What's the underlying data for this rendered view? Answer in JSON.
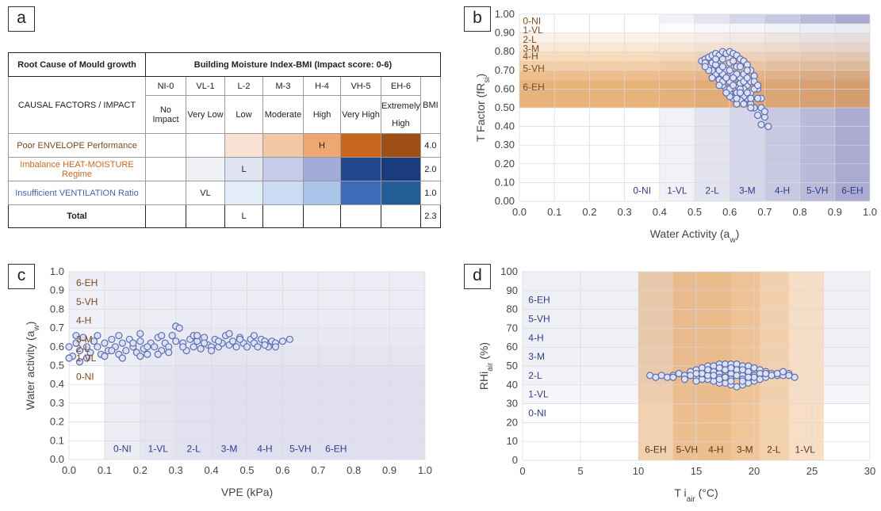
{
  "panel_labels": {
    "a": "a",
    "b": "b",
    "c": "c",
    "d": "d"
  },
  "table": {
    "root_cause_header": "Root Cause of  Mould growth",
    "bmi_header": "Building Moisture Index-BMI (Impact score: 0-6)",
    "causal_header": "CAUSAL FACTORS / IMPACT",
    "bmi_col": "BMI",
    "levels": [
      {
        "code": "NI-0",
        "name": "No Impact"
      },
      {
        "code": "VL-1",
        "name": "Very Low"
      },
      {
        "code": "L-2",
        "name": "Low"
      },
      {
        "code": "M-3",
        "name": "Moderate"
      },
      {
        "code": "H-4",
        "name": "High"
      },
      {
        "code": "VH-5",
        "name": "Very High"
      },
      {
        "code": "EH-6",
        "name": "Extremely High"
      }
    ],
    "rows": [
      {
        "label": "Poor ENVELOPE Performance",
        "label_color": "#7a4a1e",
        "marks": [
          "",
          "",
          "",
          "",
          "H",
          "",
          ""
        ],
        "colors": [
          "#ffffff",
          "#ffffff",
          "#f9e2d4",
          "#f2c8a6",
          "#eea771",
          "#c9651d",
          "#9e4f15"
        ],
        "bmi": "4.0"
      },
      {
        "label": "Imbalance HEAT-MOISTURE Regime",
        "label_color": "#c56a1f",
        "marks": [
          "",
          "",
          "L",
          "",
          "",
          "",
          ""
        ],
        "colors": [
          "#ffffff",
          "#eff1f7",
          "#dfe3f2",
          "#c6cce8",
          "#a3abd9",
          "#23468f",
          "#1a3b7e"
        ],
        "bmi": "2.0"
      },
      {
        "label": "Insufficient VENTILATION Ratio",
        "label_color": "#4a63b0",
        "marks": [
          "",
          "VL",
          "",
          "",
          "",
          "",
          ""
        ],
        "colors": [
          "#ffffff",
          "#ffffff",
          "#e3edf9",
          "#c9dcf3",
          "#a9c5ea",
          "#3e6bb8",
          "#255d96"
        ],
        "bmi": "1.0"
      }
    ],
    "total": {
      "label": "Total",
      "marks": [
        "",
        "",
        "L",
        "",
        "",
        "",
        ""
      ],
      "bmi": "2.3"
    }
  },
  "chart_data": [
    {
      "id": "b",
      "type": "scatter",
      "xlabel": "Water Activity (a_w)",
      "ylabel": "T Factor (fR_si)",
      "xlim": [
        0,
        1
      ],
      "ylim": [
        0,
        1
      ],
      "x_ticks": [
        "0.0",
        "0.1",
        "0.2",
        "0.3",
        "0.4",
        "0.5",
        "0.6",
        "0.7",
        "0.8",
        "0.9",
        "1.0"
      ],
      "y_ticks": [
        "0.00",
        "0.10",
        "0.20",
        "0.30",
        "0.40",
        "0.50",
        "0.60",
        "0.70",
        "0.80",
        "0.90",
        "1.00"
      ],
      "h_zone_labels": [
        "0-NI",
        "1-VL",
        "2-L",
        "3-M",
        "4-H",
        "5-VH",
        "6-EH"
      ],
      "v_zone_labels": [
        "0-NI",
        "1-VL",
        "2-L",
        "3-M",
        "4-H",
        "5-VH",
        "6-EH"
      ],
      "points": [
        [
          0.52,
          0.75
        ],
        [
          0.53,
          0.76
        ],
        [
          0.54,
          0.77
        ],
        [
          0.55,
          0.78
        ],
        [
          0.56,
          0.79
        ],
        [
          0.57,
          0.78
        ],
        [
          0.58,
          0.8
        ],
        [
          0.59,
          0.79
        ],
        [
          0.6,
          0.8
        ],
        [
          0.61,
          0.79
        ],
        [
          0.62,
          0.78
        ],
        [
          0.63,
          0.76
        ],
        [
          0.64,
          0.75
        ],
        [
          0.65,
          0.73
        ],
        [
          0.66,
          0.7
        ],
        [
          0.67,
          0.67
        ],
        [
          0.68,
          0.6
        ],
        [
          0.69,
          0.55
        ],
        [
          0.7,
          0.45
        ],
        [
          0.71,
          0.4
        ],
        [
          0.69,
          0.41
        ],
        [
          0.68,
          0.46
        ],
        [
          0.67,
          0.5
        ],
        [
          0.66,
          0.52
        ],
        [
          0.65,
          0.55
        ],
        [
          0.64,
          0.56
        ],
        [
          0.63,
          0.54
        ],
        [
          0.62,
          0.52
        ],
        [
          0.61,
          0.55
        ],
        [
          0.6,
          0.58
        ],
        [
          0.59,
          0.6
        ],
        [
          0.58,
          0.62
        ],
        [
          0.57,
          0.65
        ],
        [
          0.56,
          0.68
        ],
        [
          0.55,
          0.7
        ],
        [
          0.54,
          0.72
        ],
        [
          0.53,
          0.74
        ],
        [
          0.55,
          0.74
        ],
        [
          0.57,
          0.72
        ],
        [
          0.59,
          0.7
        ],
        [
          0.61,
          0.68
        ],
        [
          0.63,
          0.66
        ],
        [
          0.65,
          0.62
        ],
        [
          0.6,
          0.74
        ],
        [
          0.62,
          0.72
        ],
        [
          0.58,
          0.76
        ],
        [
          0.64,
          0.6
        ],
        [
          0.66,
          0.58
        ],
        [
          0.6,
          0.64
        ],
        [
          0.62,
          0.62
        ],
        [
          0.58,
          0.68
        ],
        [
          0.56,
          0.73
        ],
        [
          0.64,
          0.68
        ],
        [
          0.66,
          0.64
        ],
        [
          0.62,
          0.58
        ],
        [
          0.6,
          0.6
        ],
        [
          0.58,
          0.64
        ],
        [
          0.61,
          0.75
        ],
        [
          0.63,
          0.72
        ],
        [
          0.56,
          0.76
        ],
        [
          0.59,
          0.66
        ],
        [
          0.57,
          0.7
        ],
        [
          0.65,
          0.7
        ],
        [
          0.63,
          0.63
        ],
        [
          0.61,
          0.62
        ],
        [
          0.67,
          0.6
        ],
        [
          0.68,
          0.55
        ],
        [
          0.66,
          0.5
        ],
        [
          0.64,
          0.52
        ],
        [
          0.62,
          0.55
        ],
        [
          0.6,
          0.56
        ],
        [
          0.59,
          0.58
        ],
        [
          0.57,
          0.62
        ],
        [
          0.55,
          0.66
        ],
        [
          0.54,
          0.7
        ],
        [
          0.53,
          0.72
        ],
        [
          0.58,
          0.72
        ],
        [
          0.6,
          0.7
        ],
        [
          0.62,
          0.68
        ],
        [
          0.64,
          0.64
        ],
        [
          0.65,
          0.66
        ],
        [
          0.61,
          0.66
        ],
        [
          0.63,
          0.6
        ],
        [
          0.67,
          0.64
        ],
        [
          0.68,
          0.62
        ],
        [
          0.69,
          0.5
        ],
        [
          0.7,
          0.48
        ],
        [
          0.66,
          0.55
        ],
        [
          0.65,
          0.58
        ],
        [
          0.63,
          0.58
        ]
      ]
    },
    {
      "id": "c",
      "type": "scatter",
      "xlabel": "VPE (kPa)",
      "ylabel": "Water activity (a_w)",
      "xlim": [
        0,
        1
      ],
      "ylim": [
        0,
        1
      ],
      "x_ticks": [
        "0.0",
        "0.1",
        "0.2",
        "0.3",
        "0.4",
        "0.5",
        "0.6",
        "0.7",
        "0.8",
        "0.9",
        "1.0"
      ],
      "y_ticks": [
        "0.0",
        "0.1",
        "0.2",
        "0.3",
        "0.4",
        "0.5",
        "0.6",
        "0.7",
        "0.8",
        "0.9",
        "1.0"
      ],
      "h_zone_labels": [
        "0-NI",
        "1-VL",
        "2-L",
        "3-M",
        "4-H",
        "5-VH",
        "6-EH"
      ],
      "v_zone_labels": [
        "0-NI",
        "1-VL",
        "2-L",
        "3-M",
        "4-H",
        "5-VH",
        "6-EH"
      ],
      "points": [
        [
          0.0,
          0.6
        ],
        [
          0.01,
          0.55
        ],
        [
          0.02,
          0.62
        ],
        [
          0.03,
          0.58
        ],
        [
          0.04,
          0.65
        ],
        [
          0.05,
          0.6
        ],
        [
          0.06,
          0.57
        ],
        [
          0.07,
          0.63
        ],
        [
          0.08,
          0.6
        ],
        [
          0.09,
          0.56
        ],
        [
          0.1,
          0.62
        ],
        [
          0.11,
          0.58
        ],
        [
          0.12,
          0.64
        ],
        [
          0.13,
          0.6
        ],
        [
          0.14,
          0.56
        ],
        [
          0.15,
          0.62
        ],
        [
          0.16,
          0.58
        ],
        [
          0.17,
          0.64
        ],
        [
          0.18,
          0.6
        ],
        [
          0.19,
          0.57
        ],
        [
          0.2,
          0.63
        ],
        [
          0.21,
          0.59
        ],
        [
          0.22,
          0.56
        ],
        [
          0.23,
          0.62
        ],
        [
          0.24,
          0.6
        ],
        [
          0.25,
          0.65
        ],
        [
          0.26,
          0.58
        ],
        [
          0.27,
          0.62
        ],
        [
          0.28,
          0.6
        ],
        [
          0.29,
          0.66
        ],
        [
          0.3,
          0.71
        ],
        [
          0.31,
          0.7
        ],
        [
          0.32,
          0.62
        ],
        [
          0.33,
          0.58
        ],
        [
          0.34,
          0.64
        ],
        [
          0.35,
          0.6
        ],
        [
          0.36,
          0.63
        ],
        [
          0.37,
          0.59
        ],
        [
          0.38,
          0.65
        ],
        [
          0.39,
          0.61
        ],
        [
          0.4,
          0.6
        ],
        [
          0.41,
          0.64
        ],
        [
          0.42,
          0.6
        ],
        [
          0.43,
          0.62
        ],
        [
          0.44,
          0.66
        ],
        [
          0.45,
          0.61
        ],
        [
          0.46,
          0.63
        ],
        [
          0.47,
          0.6
        ],
        [
          0.48,
          0.65
        ],
        [
          0.49,
          0.62
        ],
        [
          0.5,
          0.6
        ],
        [
          0.51,
          0.64
        ],
        [
          0.52,
          0.62
        ],
        [
          0.53,
          0.6
        ],
        [
          0.54,
          0.64
        ],
        [
          0.55,
          0.63
        ],
        [
          0.56,
          0.6
        ],
        [
          0.57,
          0.63
        ],
        [
          0.58,
          0.62
        ],
        [
          0.6,
          0.63
        ],
        [
          0.62,
          0.64
        ],
        [
          0.05,
          0.54
        ],
        [
          0.1,
          0.55
        ],
        [
          0.15,
          0.54
        ],
        [
          0.2,
          0.55
        ],
        [
          0.25,
          0.56
        ],
        [
          0.02,
          0.66
        ],
        [
          0.08,
          0.66
        ],
        [
          0.14,
          0.66
        ],
        [
          0.2,
          0.67
        ],
        [
          0.26,
          0.66
        ],
        [
          0.35,
          0.66
        ],
        [
          0.45,
          0.67
        ],
        [
          0.12,
          0.58
        ],
        [
          0.18,
          0.62
        ],
        [
          0.22,
          0.6
        ],
        [
          0.28,
          0.57
        ],
        [
          0.32,
          0.6
        ],
        [
          0.38,
          0.62
        ],
        [
          0.42,
          0.63
        ],
        [
          0.48,
          0.64
        ],
        [
          0.52,
          0.66
        ],
        [
          0.55,
          0.61
        ],
        [
          0.03,
          0.52
        ],
        [
          0.0,
          0.54
        ],
        [
          0.58,
          0.6
        ],
        [
          0.3,
          0.63
        ],
        [
          0.4,
          0.58
        ],
        [
          0.36,
          0.66
        ]
      ]
    },
    {
      "id": "d",
      "type": "scatter",
      "xlabel": "T i_air (°C)",
      "ylabel": "RHi_air (%)",
      "xlim": [
        0,
        30
      ],
      "ylim": [
        0,
        100
      ],
      "x_ticks": [
        "0",
        "5",
        "10",
        "15",
        "20",
        "25",
        "30"
      ],
      "y_ticks": [
        "0",
        "10",
        "20",
        "30",
        "40",
        "50",
        "60",
        "70",
        "80",
        "90",
        "100"
      ],
      "h_zone_labels": [
        "0-NI",
        "1-VL",
        "2-L",
        "3-M",
        "4-H",
        "5-VH",
        "6-EH"
      ],
      "v_zone_labels": [
        "6-EH",
        "5-VH",
        "4-H",
        "3-M",
        "2-L",
        "1-VL"
      ],
      "points": [
        [
          11,
          45
        ],
        [
          11.5,
          44
        ],
        [
          12,
          45
        ],
        [
          12.5,
          44
        ],
        [
          13,
          45
        ],
        [
          13.5,
          46
        ],
        [
          14,
          45
        ],
        [
          14.5,
          47
        ],
        [
          15,
          48
        ],
        [
          15.5,
          49
        ],
        [
          16,
          50
        ],
        [
          16.5,
          50
        ],
        [
          17,
          51
        ],
        [
          17.5,
          51
        ],
        [
          18,
          51
        ],
        [
          18.5,
          51
        ],
        [
          19,
          50
        ],
        [
          19.5,
          50
        ],
        [
          20,
          49
        ],
        [
          20.5,
          48
        ],
        [
          21,
          47
        ],
        [
          21.5,
          46
        ],
        [
          22,
          45
        ],
        [
          22.5,
          45
        ],
        [
          23,
          46
        ],
        [
          23.5,
          44
        ],
        [
          23,
          45
        ],
        [
          22,
          46
        ],
        [
          21,
          44
        ],
        [
          20,
          42
        ],
        [
          19.5,
          41
        ],
        [
          19,
          40
        ],
        [
          18.5,
          39
        ],
        [
          18,
          40
        ],
        [
          17.5,
          41
        ],
        [
          17,
          41
        ],
        [
          16.5,
          42
        ],
        [
          16,
          43
        ],
        [
          15.5,
          43
        ],
        [
          15,
          44
        ],
        [
          14,
          43
        ],
        [
          13,
          44
        ],
        [
          14.5,
          45
        ],
        [
          15.5,
          46
        ],
        [
          16.5,
          47
        ],
        [
          17.5,
          48
        ],
        [
          18.5,
          48
        ],
        [
          19.5,
          47
        ],
        [
          20.5,
          46
        ],
        [
          21.5,
          45
        ],
        [
          16,
          45
        ],
        [
          17,
          46
        ],
        [
          18,
          46
        ],
        [
          19,
          45
        ],
        [
          20,
          45
        ],
        [
          17,
          44
        ],
        [
          18,
          43
        ],
        [
          19,
          43
        ],
        [
          20,
          44
        ],
        [
          15,
          46
        ],
        [
          16,
          48
        ],
        [
          17,
          49
        ],
        [
          18,
          49
        ],
        [
          19,
          48
        ],
        [
          17.5,
          44
        ],
        [
          18.5,
          45
        ],
        [
          19.5,
          44
        ],
        [
          16.5,
          45
        ],
        [
          21,
          46
        ],
        [
          15,
          42
        ],
        [
          20.5,
          43
        ],
        [
          22.5,
          47
        ],
        [
          18,
          42
        ],
        [
          19,
          42
        ],
        [
          17,
          43
        ]
      ]
    }
  ]
}
